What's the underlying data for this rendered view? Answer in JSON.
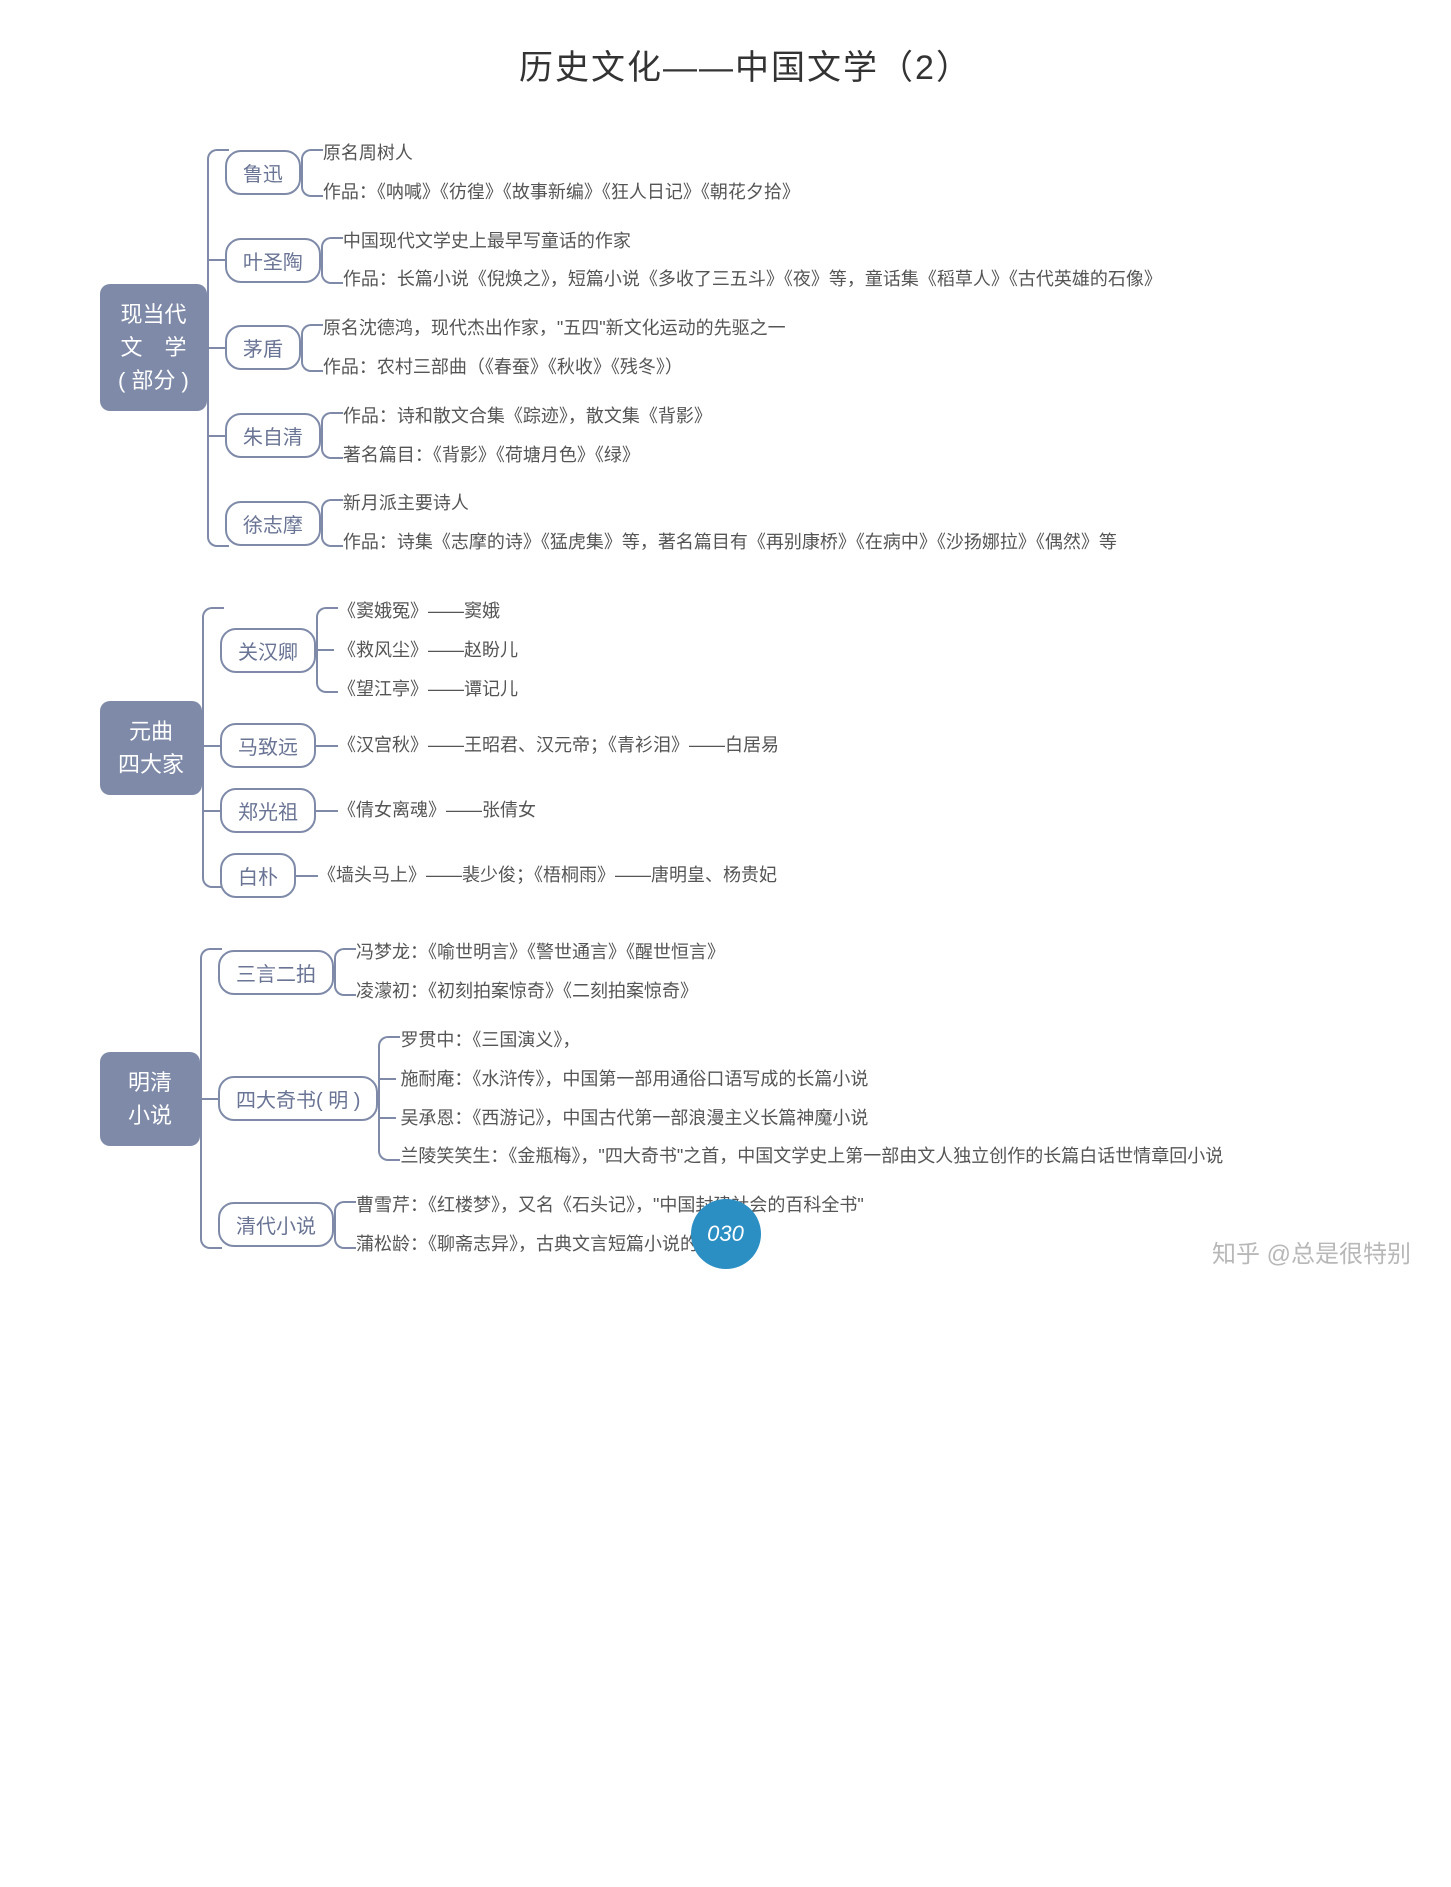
{
  "title": "历史文化——中国文学（2）",
  "page_number": "030",
  "watermark": "知乎 @总是很特别",
  "colors": {
    "root_bg": "#7e8aa8",
    "root_text": "#ffffff",
    "node_border": "#7e8aa8",
    "node_text": "#6a7494",
    "leaf_text": "#555555",
    "connector": "#7e8aa8",
    "badge_bg": "#2b8fc4",
    "watermark": "#b8b8b8",
    "background": "#ffffff"
  },
  "typography": {
    "title_fontsize": 34,
    "root_fontsize": 22,
    "node_fontsize": 20,
    "leaf_fontsize": 18
  },
  "tree": [
    {
      "label": "现当代\n文　学\n( 部分 )",
      "children": [
        {
          "label": "鲁迅",
          "leaves": [
            "原名周树人",
            "作品：《呐喊》《彷徨》《故事新编》《狂人日记》《朝花夕拾》"
          ]
        },
        {
          "label": "叶圣陶",
          "leaves": [
            "中国现代文学史上最早写童话的作家",
            "作品：长篇小说《倪焕之》，短篇小说《多收了三五斗》《夜》等，童话集《稻草人》《古代英雄的石像》"
          ]
        },
        {
          "label": "茅盾",
          "leaves": [
            "原名沈德鸿，现代杰出作家，\"五四\"新文化运动的先驱之一",
            "作品：农村三部曲（《春蚕》《秋收》《残冬》）"
          ]
        },
        {
          "label": "朱自清",
          "leaves": [
            "作品：诗和散文合集《踪迹》，散文集《背影》",
            "著名篇目：《背影》《荷塘月色》《绿》"
          ]
        },
        {
          "label": "徐志摩",
          "leaves": [
            "新月派主要诗人",
            "作品：诗集《志摩的诗》《猛虎集》等，著名篇目有《再别康桥》《在病中》《沙扬娜拉》《偶然》等"
          ]
        }
      ]
    },
    {
      "label": "元曲\n四大家",
      "children": [
        {
          "label": "关汉卿",
          "leaves": [
            "《窦娥冤》——窦娥",
            "《救风尘》——赵盼儿",
            "《望江亭》——谭记儿"
          ]
        },
        {
          "label": "马致远",
          "leaves": [
            "《汉宫秋》——王昭君、汉元帝；《青衫泪》——白居易"
          ]
        },
        {
          "label": "郑光祖",
          "leaves": [
            "《倩女离魂》——张倩女"
          ]
        },
        {
          "label": "白朴",
          "leaves": [
            "《墙头马上》——裴少俊；《梧桐雨》——唐明皇、杨贵妃"
          ]
        }
      ]
    },
    {
      "label": "明清\n小说",
      "children": [
        {
          "label": "三言二拍",
          "leaves": [
            "冯梦龙：《喻世明言》《警世通言》《醒世恒言》",
            "凌濛初：《初刻拍案惊奇》《二刻拍案惊奇》"
          ]
        },
        {
          "label": "四大奇书( 明 )",
          "leaves": [
            "罗贯中：《三国演义》，",
            "施耐庵：《水浒传》，中国第一部用通俗口语写成的长篇小说",
            "吴承恩：《西游记》，中国古代第一部浪漫主义长篇神魔小说",
            "兰陵笑笑生：《金瓶梅》，\"四大奇书\"之首，中国文学史上第一部由文人独立创作的长篇白话世情章回小说"
          ]
        },
        {
          "label": "清代小说",
          "leaves": [
            "曹雪芹：《红楼梦》，又名《石头记》，\"中国封建社会的百科全书\"",
            "蒲松龄：《聊斋志异》，古典文言短篇小说的巅峰"
          ]
        }
      ]
    }
  ]
}
